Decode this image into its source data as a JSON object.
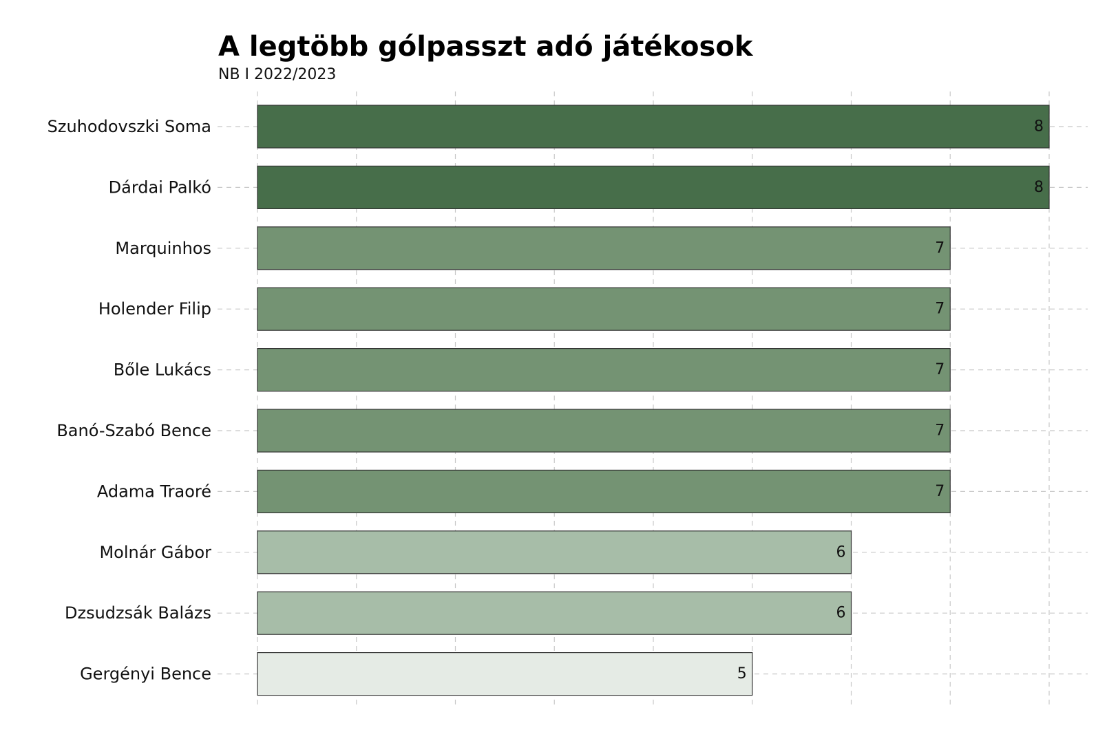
{
  "chart_data": {
    "type": "bar",
    "orientation": "horizontal",
    "title": "A legtöbb gólpasszt adó játékosok",
    "subtitle": "NB I 2022/2023",
    "xlabel": "",
    "ylabel": "",
    "xlim": [
      0,
      8
    ],
    "grid": true,
    "categories": [
      "Szuhodovszki Soma",
      "Dárdai Palkó",
      "Marquinhos",
      "Holender Filip",
      "Bőle Lukács",
      "Banó-Szabó Bence",
      "Adama Traoré",
      "Molnár Gábor",
      "Dzsudzsák Balázs",
      "Gergényi Bence"
    ],
    "values": [
      8,
      8,
      7,
      7,
      7,
      7,
      7,
      6,
      6,
      5
    ],
    "value_labels": [
      "8",
      "8",
      "7",
      "7",
      "7",
      "7",
      "7",
      "6",
      "6",
      "5"
    ],
    "colors": {
      "8": "#476e4a",
      "7": "#749373",
      "6": "#a7bda8",
      "5": "#e5ebe5"
    }
  }
}
